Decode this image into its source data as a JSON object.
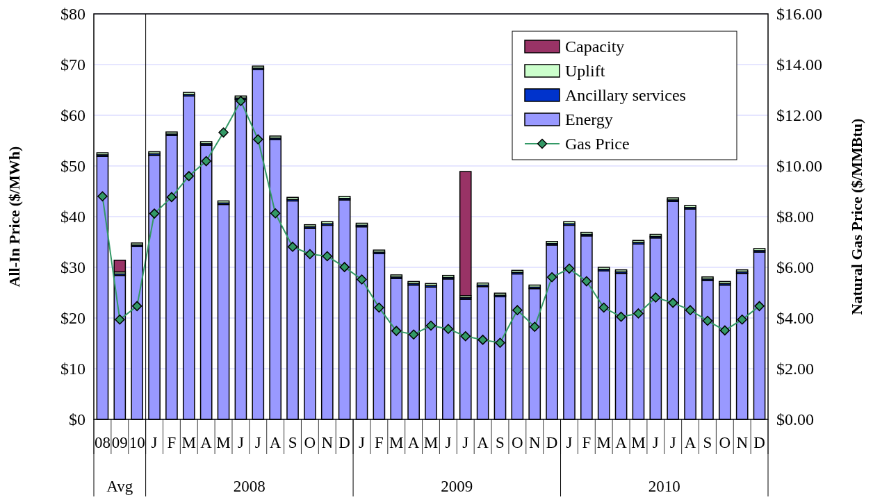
{
  "chart_data": {
    "type": "bar",
    "stacked": true,
    "categories": [
      "08",
      "09",
      "10",
      "J",
      "F",
      "M",
      "A",
      "M",
      "J",
      "J",
      "A",
      "S",
      "O",
      "N",
      "D",
      "J",
      "F",
      "M",
      "A",
      "M",
      "J",
      "J",
      "A",
      "S",
      "O",
      "N",
      "D",
      "J",
      "F",
      "M",
      "A",
      "M",
      "J",
      "J",
      "A",
      "S",
      "O",
      "N",
      "D"
    ],
    "ylabel": "All-In Price ($/MWh)",
    "y2label": "Natural Gas Price ($/MMBtu)",
    "ylim": [
      0,
      80
    ],
    "yticks": [
      {
        "value": 0,
        "label": "$0"
      },
      {
        "value": 10,
        "label": "$10"
      },
      {
        "value": 20,
        "label": "$20"
      },
      {
        "value": 30,
        "label": "$30"
      },
      {
        "value": 40,
        "label": "$40"
      },
      {
        "value": 50,
        "label": "$50"
      },
      {
        "value": 60,
        "label": "$60"
      },
      {
        "value": 70,
        "label": "$70"
      },
      {
        "value": 80,
        "label": "$80"
      }
    ],
    "y2lim": [
      0,
      16
    ],
    "y2ticks": [
      {
        "value": 0,
        "label": "$0.00"
      },
      {
        "value": 2,
        "label": "$2.00"
      },
      {
        "value": 4,
        "label": "$4.00"
      },
      {
        "value": 6,
        "label": "$6.00"
      },
      {
        "value": 8,
        "label": "$8.00"
      },
      {
        "value": 10,
        "label": "$10.00"
      },
      {
        "value": 12,
        "label": "$12.00"
      },
      {
        "value": 14,
        "label": "$14.00"
      },
      {
        "value": 16,
        "label": "$16.00"
      }
    ],
    "grid": "y",
    "legend": "top right",
    "annotations": [
      "Avg",
      "2008",
      "2009",
      "2010"
    ],
    "ref_lines": [
      {
        "axis": "x",
        "value": "10",
        "color": "#000000"
      }
    ],
    "series": [
      {
        "name": "Energy",
        "color": "#9999ff",
        "values": [
          51.9,
          28.4,
          34.1,
          52.1,
          56.0,
          63.8,
          54.1,
          42.4,
          63.1,
          69.0,
          55.2,
          43.1,
          37.7,
          38.3,
          43.3,
          38.0,
          32.7,
          27.8,
          26.5,
          26.1,
          27.7,
          23.7,
          26.2,
          24.2,
          28.7,
          25.8,
          34.4,
          38.3,
          36.2,
          29.3,
          28.8,
          34.6,
          35.8,
          43.0,
          41.5,
          27.4,
          26.5,
          28.8,
          33.0
        ]
      },
      {
        "name": "Ancillary services",
        "color": "#0033cc",
        "values": [
          0.3,
          0.3,
          0.3,
          0.3,
          0.3,
          0.3,
          0.3,
          0.3,
          0.3,
          0.3,
          0.3,
          0.3,
          0.3,
          0.3,
          0.3,
          0.3,
          0.3,
          0.3,
          0.3,
          0.3,
          0.3,
          0.3,
          0.3,
          0.3,
          0.3,
          0.3,
          0.3,
          0.3,
          0.3,
          0.3,
          0.3,
          0.3,
          0.3,
          0.3,
          0.3,
          0.3,
          0.3,
          0.3,
          0.3
        ]
      },
      {
        "name": "Uplift",
        "color": "#ccffcc",
        "values": [
          0.4,
          0.4,
          0.4,
          0.4,
          0.4,
          0.4,
          0.4,
          0.4,
          0.4,
          0.4,
          0.4,
          0.4,
          0.4,
          0.4,
          0.4,
          0.4,
          0.4,
          0.4,
          0.4,
          0.4,
          0.4,
          0.4,
          0.4,
          0.4,
          0.4,
          0.4,
          0.4,
          0.4,
          0.4,
          0.4,
          0.4,
          0.4,
          0.4,
          0.4,
          0.4,
          0.4,
          0.4,
          0.4,
          0.4
        ]
      },
      {
        "name": "Capacity",
        "color": "#993366",
        "values": [
          0,
          2.3,
          0,
          0,
          0,
          0,
          0,
          0,
          0,
          0,
          0,
          0,
          0,
          0,
          0,
          0,
          0,
          0,
          0,
          0,
          0,
          24.5,
          0,
          0,
          0,
          0,
          0,
          0,
          0,
          0,
          0,
          0,
          0,
          0,
          0,
          0,
          0,
          0,
          0
        ]
      },
      {
        "name": "Gas Price",
        "type": "line",
        "axis": "y2",
        "color": "#339966",
        "marker": "diamond",
        "values": [
          8.8,
          3.94,
          4.47,
          8.12,
          8.77,
          9.6,
          10.19,
          11.32,
          12.56,
          11.05,
          8.13,
          6.81,
          6.52,
          6.44,
          6.01,
          5.52,
          4.41,
          3.49,
          3.35,
          3.7,
          3.57,
          3.28,
          3.14,
          3.02,
          4.31,
          3.65,
          5.61,
          5.95,
          5.45,
          4.41,
          4.05,
          4.18,
          4.81,
          4.6,
          4.31,
          3.89,
          3.51,
          3.94,
          4.47
        ]
      }
    ]
  }
}
